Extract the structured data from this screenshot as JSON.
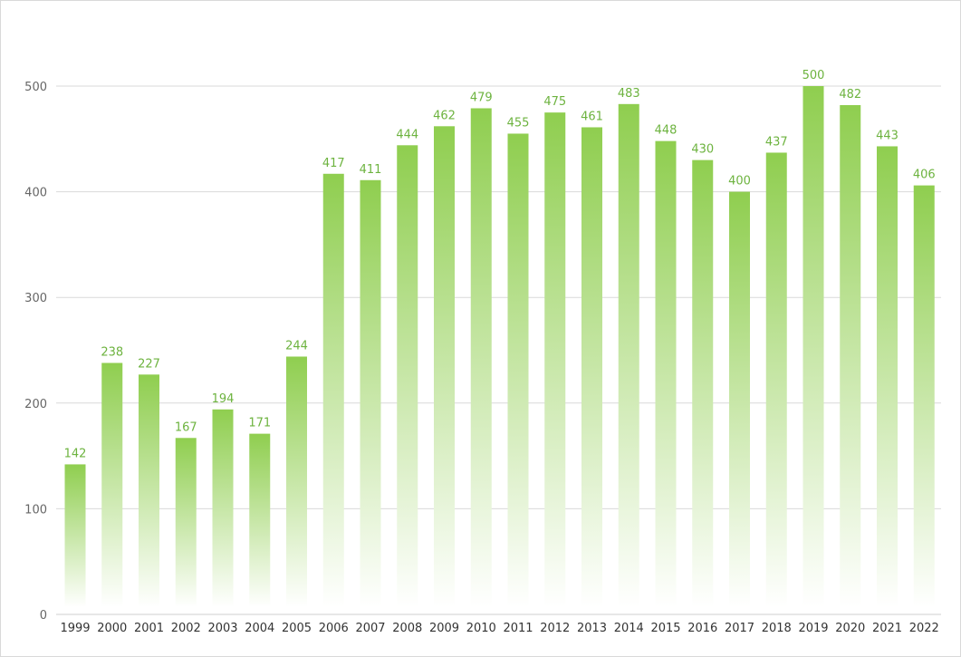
{
  "chart_data": {
    "type": "bar",
    "categories": [
      "1999",
      "2000",
      "2001",
      "2002",
      "2003",
      "2004",
      "2005",
      "2006",
      "2007",
      "2008",
      "2009",
      "2010",
      "2011",
      "2012",
      "2013",
      "2014",
      "2015",
      "2016",
      "2017",
      "2018",
      "2019",
      "2020",
      "2021",
      "2022"
    ],
    "values": [
      142,
      238,
      227,
      167,
      194,
      171,
      244,
      417,
      411,
      444,
      462,
      479,
      455,
      475,
      461,
      483,
      448,
      430,
      400,
      437,
      500,
      482,
      443,
      406
    ],
    "title": "",
    "xlabel": "",
    "ylabel": "",
    "ylim": [
      0,
      500
    ],
    "yticks": [
      0,
      100,
      200,
      300,
      400,
      500
    ],
    "grid": true,
    "legend": "none",
    "colors": {
      "bar_top": "#8fce4f",
      "bar_bottom": "#ffffff",
      "data_label": "#6db33f",
      "grid": "#d9d9d9"
    }
  }
}
